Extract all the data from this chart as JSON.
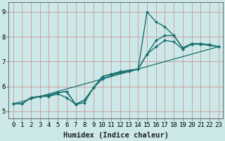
{
  "xlabel": "Humidex (Indice chaleur)",
  "ylabel": "",
  "bg_color": "#cce8e8",
  "grid_color": "#cc8888",
  "line_color": "#1a7070",
  "marker_color": "#1a7070",
  "xlim": [
    -0.5,
    23.5
  ],
  "ylim": [
    4.7,
    9.4
  ],
  "xticks": [
    0,
    1,
    2,
    3,
    4,
    5,
    6,
    7,
    8,
    9,
    10,
    11,
    12,
    13,
    14,
    15,
    16,
    17,
    18,
    19,
    20,
    21,
    22,
    23
  ],
  "yticks": [
    5,
    6,
    7,
    8,
    9
  ],
  "series": [
    {
      "x": [
        0,
        1,
        2,
        3,
        4,
        5,
        6,
        7,
        8,
        9,
        10,
        11,
        12,
        13,
        14,
        15,
        16,
        17,
        18,
        19,
        20,
        21,
        22,
        23
      ],
      "y": [
        5.3,
        5.3,
        5.55,
        5.6,
        5.6,
        5.7,
        5.55,
        5.28,
        5.35,
        5.95,
        6.3,
        6.45,
        6.55,
        6.6,
        6.7,
        7.3,
        7.6,
        7.85,
        7.8,
        7.5,
        7.7,
        7.7,
        7.65,
        7.6
      ],
      "marker": "D",
      "markersize": 2.0,
      "linewidth": 1.0
    },
    {
      "x": [
        0,
        1,
        2,
        3,
        4,
        5,
        6,
        7,
        8,
        9,
        10,
        11,
        12,
        13,
        14,
        15,
        16,
        17,
        18,
        19,
        20,
        21,
        22,
        23
      ],
      "y": [
        5.3,
        5.3,
        5.55,
        5.6,
        5.65,
        5.75,
        5.8,
        5.28,
        5.45,
        5.95,
        6.4,
        6.5,
        6.55,
        6.65,
        6.7,
        7.3,
        7.85,
        8.05,
        8.05,
        7.55,
        7.72,
        7.72,
        7.68,
        7.6
      ],
      "marker": "D",
      "markersize": 2.0,
      "linewidth": 1.0
    },
    {
      "x": [
        0,
        1,
        2,
        3,
        4,
        5,
        6,
        7,
        8,
        9,
        10,
        11,
        12,
        13,
        14,
        15,
        16,
        17,
        18,
        19,
        20,
        21,
        22,
        23
      ],
      "y": [
        5.3,
        5.3,
        5.55,
        5.6,
        5.65,
        5.75,
        5.8,
        5.28,
        5.45,
        5.95,
        6.4,
        6.5,
        6.6,
        6.65,
        6.7,
        9.0,
        8.6,
        8.4,
        8.05,
        7.55,
        7.72,
        7.72,
        7.68,
        7.6
      ],
      "marker": "D",
      "markersize": 2.0,
      "linewidth": 1.0
    },
    {
      "x": [
        0,
        23
      ],
      "y": [
        5.3,
        7.6
      ],
      "marker": null,
      "markersize": 0,
      "linewidth": 0.9
    }
  ],
  "xlabel_fontsize": 7.5,
  "tick_fontsize": 6.5
}
